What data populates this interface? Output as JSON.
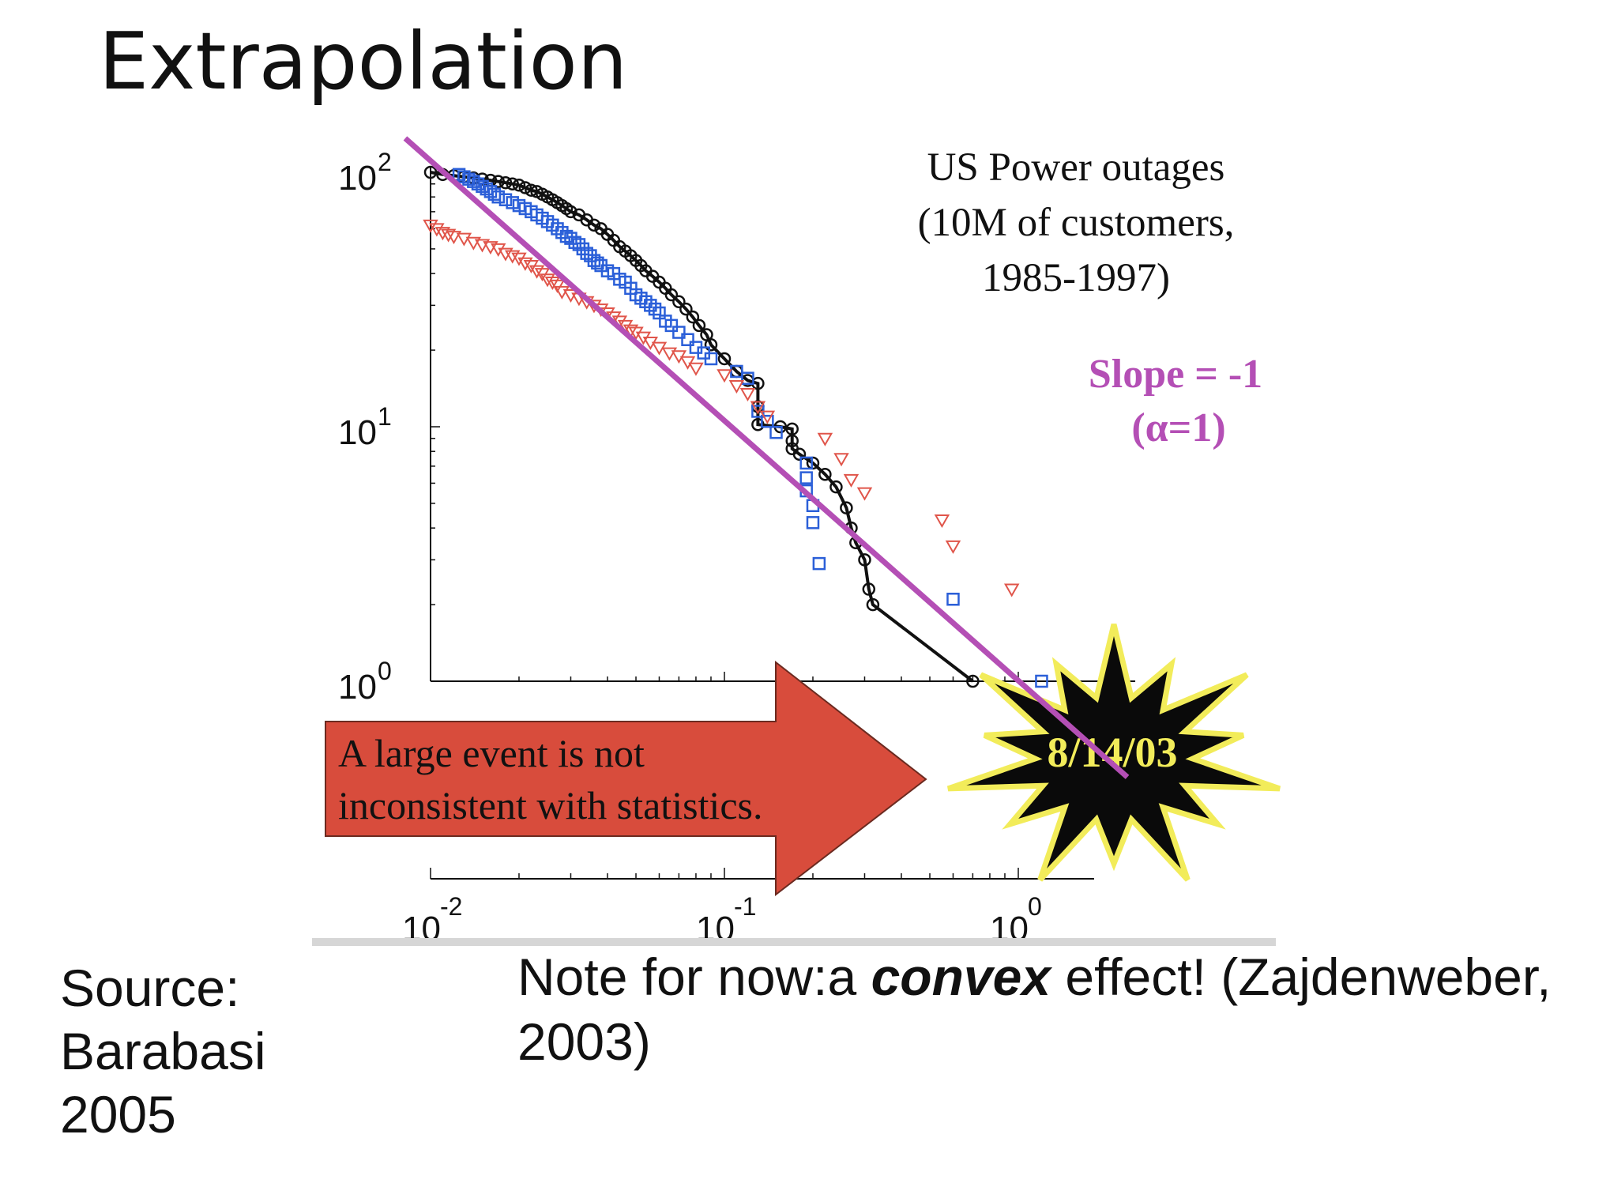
{
  "slide": {
    "title": "Extrapolation",
    "source_lines": [
      "Source:",
      "Barabasi",
      "2005"
    ],
    "note": {
      "before": "Note for now:a ",
      "emphasis": "convex",
      "after": " effect! (Zajdenweber, 2003)"
    }
  },
  "chart_data": {
    "type": "scatter",
    "title_lines": [
      "US Power outages",
      "(10M of customers,",
      "1985-1997)"
    ],
    "xlabel": "",
    "ylabel": "",
    "xscale": "log",
    "yscale": "log",
    "xlim": [
      0.01,
      2.5
    ],
    "ylim": [
      1,
      100
    ],
    "x_ticks": [
      {
        "value": 0.01,
        "base": "10",
        "exp": "-2"
      },
      {
        "value": 0.1,
        "base": "10",
        "exp": "-1"
      },
      {
        "value": 1,
        "base": "10",
        "exp": "0"
      }
    ],
    "y_ticks": [
      {
        "value": 1,
        "base": "10",
        "exp": "0"
      },
      {
        "value": 10,
        "base": "10",
        "exp": "1"
      },
      {
        "value": 100,
        "base": "10",
        "exp": "2"
      }
    ],
    "fit_line": {
      "label": "Slope = -1",
      "sublabel": "(α=1)",
      "slope": -1,
      "color": "#b44fb5",
      "points": [
        [
          0.0082,
          136
        ],
        [
          2.35,
          0.42
        ]
      ]
    },
    "series": [
      {
        "marker": "circle-line",
        "color": "#111111",
        "points": [
          [
            0.01,
            100
          ],
          [
            0.011,
            98
          ],
          [
            0.012,
            97
          ],
          [
            0.013,
            96
          ],
          [
            0.014,
            95
          ],
          [
            0.015,
            94
          ],
          [
            0.016,
            93
          ],
          [
            0.017,
            92
          ],
          [
            0.018,
            91
          ],
          [
            0.019,
            90
          ],
          [
            0.02,
            89
          ],
          [
            0.021,
            87
          ],
          [
            0.022,
            85
          ],
          [
            0.023,
            84
          ],
          [
            0.024,
            82
          ],
          [
            0.025,
            80
          ],
          [
            0.026,
            78
          ],
          [
            0.027,
            76
          ],
          [
            0.028,
            74
          ],
          [
            0.029,
            72
          ],
          [
            0.03,
            70
          ],
          [
            0.032,
            68
          ],
          [
            0.034,
            65
          ],
          [
            0.036,
            62
          ],
          [
            0.038,
            60
          ],
          [
            0.04,
            57
          ],
          [
            0.042,
            54
          ],
          [
            0.044,
            51
          ],
          [
            0.046,
            49
          ],
          [
            0.048,
            47
          ],
          [
            0.05,
            45
          ],
          [
            0.052,
            43
          ],
          [
            0.054,
            41
          ],
          [
            0.057,
            39
          ],
          [
            0.06,
            37
          ],
          [
            0.063,
            35
          ],
          [
            0.066,
            33
          ],
          [
            0.07,
            31
          ],
          [
            0.074,
            29
          ],
          [
            0.078,
            27
          ],
          [
            0.082,
            25
          ],
          [
            0.087,
            23
          ],
          [
            0.09,
            21
          ],
          [
            0.1,
            18.5
          ],
          [
            0.11,
            16.5
          ],
          [
            0.12,
            15.2
          ],
          [
            0.13,
            14.8
          ],
          [
            0.13,
            12
          ],
          [
            0.13,
            10.2
          ],
          [
            0.155,
            10.0
          ],
          [
            0.17,
            9.8
          ],
          [
            0.17,
            8.8
          ],
          [
            0.17,
            8.2
          ],
          [
            0.18,
            7.8
          ],
          [
            0.2,
            7.2
          ],
          [
            0.22,
            6.5
          ],
          [
            0.24,
            5.8
          ],
          [
            0.26,
            4.8
          ],
          [
            0.27,
            4.0
          ],
          [
            0.28,
            3.5
          ],
          [
            0.3,
            3.0
          ],
          [
            0.31,
            2.3
          ],
          [
            0.32,
            2.0
          ],
          [
            0.7,
            1.0
          ]
        ]
      },
      {
        "marker": "square",
        "color": "#2b5fd8",
        "points": [
          [
            0.0125,
            98
          ],
          [
            0.013,
            96
          ],
          [
            0.0135,
            94
          ],
          [
            0.014,
            92
          ],
          [
            0.0145,
            90
          ],
          [
            0.015,
            88
          ],
          [
            0.0155,
            86
          ],
          [
            0.016,
            84
          ],
          [
            0.0165,
            82
          ],
          [
            0.017,
            80
          ],
          [
            0.018,
            78
          ],
          [
            0.019,
            76
          ],
          [
            0.02,
            74
          ],
          [
            0.021,
            72
          ],
          [
            0.022,
            70
          ],
          [
            0.023,
            68
          ],
          [
            0.024,
            66
          ],
          [
            0.025,
            64
          ],
          [
            0.026,
            62
          ],
          [
            0.027,
            60
          ],
          [
            0.028,
            58
          ],
          [
            0.029,
            56
          ],
          [
            0.03,
            55
          ],
          [
            0.031,
            53
          ],
          [
            0.032,
            52
          ],
          [
            0.033,
            50
          ],
          [
            0.034,
            48
          ],
          [
            0.035,
            47
          ],
          [
            0.036,
            45
          ],
          [
            0.037,
            44
          ],
          [
            0.038,
            43
          ],
          [
            0.04,
            41
          ],
          [
            0.042,
            40
          ],
          [
            0.044,
            38
          ],
          [
            0.046,
            37
          ],
          [
            0.048,
            35
          ],
          [
            0.05,
            33
          ],
          [
            0.052,
            32
          ],
          [
            0.054,
            31
          ],
          [
            0.056,
            30
          ],
          [
            0.058,
            29
          ],
          [
            0.06,
            28
          ],
          [
            0.063,
            26
          ],
          [
            0.066,
            25
          ],
          [
            0.07,
            23.5
          ],
          [
            0.075,
            22
          ],
          [
            0.08,
            20.5
          ],
          [
            0.085,
            19.5
          ],
          [
            0.09,
            18.5
          ],
          [
            0.11,
            16.5
          ],
          [
            0.12,
            15.5
          ],
          [
            0.13,
            11.5
          ],
          [
            0.14,
            10.5
          ],
          [
            0.15,
            9.5
          ],
          [
            0.19,
            7.2
          ],
          [
            0.19,
            6.3
          ],
          [
            0.19,
            5.6
          ],
          [
            0.2,
            4.9
          ],
          [
            0.2,
            4.2
          ],
          [
            0.21,
            2.9
          ],
          [
            0.6,
            2.1
          ],
          [
            1.2,
            1.0
          ]
        ]
      },
      {
        "marker": "triangle-down",
        "color": "#e0554a",
        "points": [
          [
            0.01,
            62
          ],
          [
            0.0105,
            60
          ],
          [
            0.011,
            58
          ],
          [
            0.0115,
            57
          ],
          [
            0.012,
            56
          ],
          [
            0.013,
            55
          ],
          [
            0.014,
            53
          ],
          [
            0.015,
            52
          ],
          [
            0.016,
            51
          ],
          [
            0.017,
            50
          ],
          [
            0.018,
            48
          ],
          [
            0.019,
            47
          ],
          [
            0.02,
            46
          ],
          [
            0.021,
            44
          ],
          [
            0.022,
            43
          ],
          [
            0.023,
            41
          ],
          [
            0.024,
            40
          ],
          [
            0.025,
            38
          ],
          [
            0.026,
            37
          ],
          [
            0.027,
            36
          ],
          [
            0.028,
            34
          ],
          [
            0.03,
            33
          ],
          [
            0.032,
            32
          ],
          [
            0.034,
            31
          ],
          [
            0.036,
            30
          ],
          [
            0.038,
            29
          ],
          [
            0.04,
            28
          ],
          [
            0.042,
            27
          ],
          [
            0.044,
            26
          ],
          [
            0.046,
            25
          ],
          [
            0.048,
            24
          ],
          [
            0.05,
            23.5
          ],
          [
            0.053,
            22.5
          ],
          [
            0.056,
            21.5
          ],
          [
            0.06,
            20.5
          ],
          [
            0.065,
            19.5
          ],
          [
            0.07,
            19
          ],
          [
            0.075,
            18
          ],
          [
            0.08,
            17
          ],
          [
            0.1,
            16
          ],
          [
            0.11,
            14.5
          ],
          [
            0.12,
            13.5
          ],
          [
            0.13,
            12
          ],
          [
            0.14,
            11
          ],
          [
            0.22,
            9.0
          ],
          [
            0.25,
            7.5
          ],
          [
            0.27,
            6.2
          ],
          [
            0.3,
            5.5
          ],
          [
            0.55,
            4.3
          ],
          [
            0.6,
            3.4
          ],
          [
            0.95,
            2.3
          ]
        ]
      }
    ],
    "annotations": {
      "arrow_text_lines": [
        "A large event is not",
        "inconsistent with statistics."
      ],
      "event_label": "8/14/03"
    }
  }
}
